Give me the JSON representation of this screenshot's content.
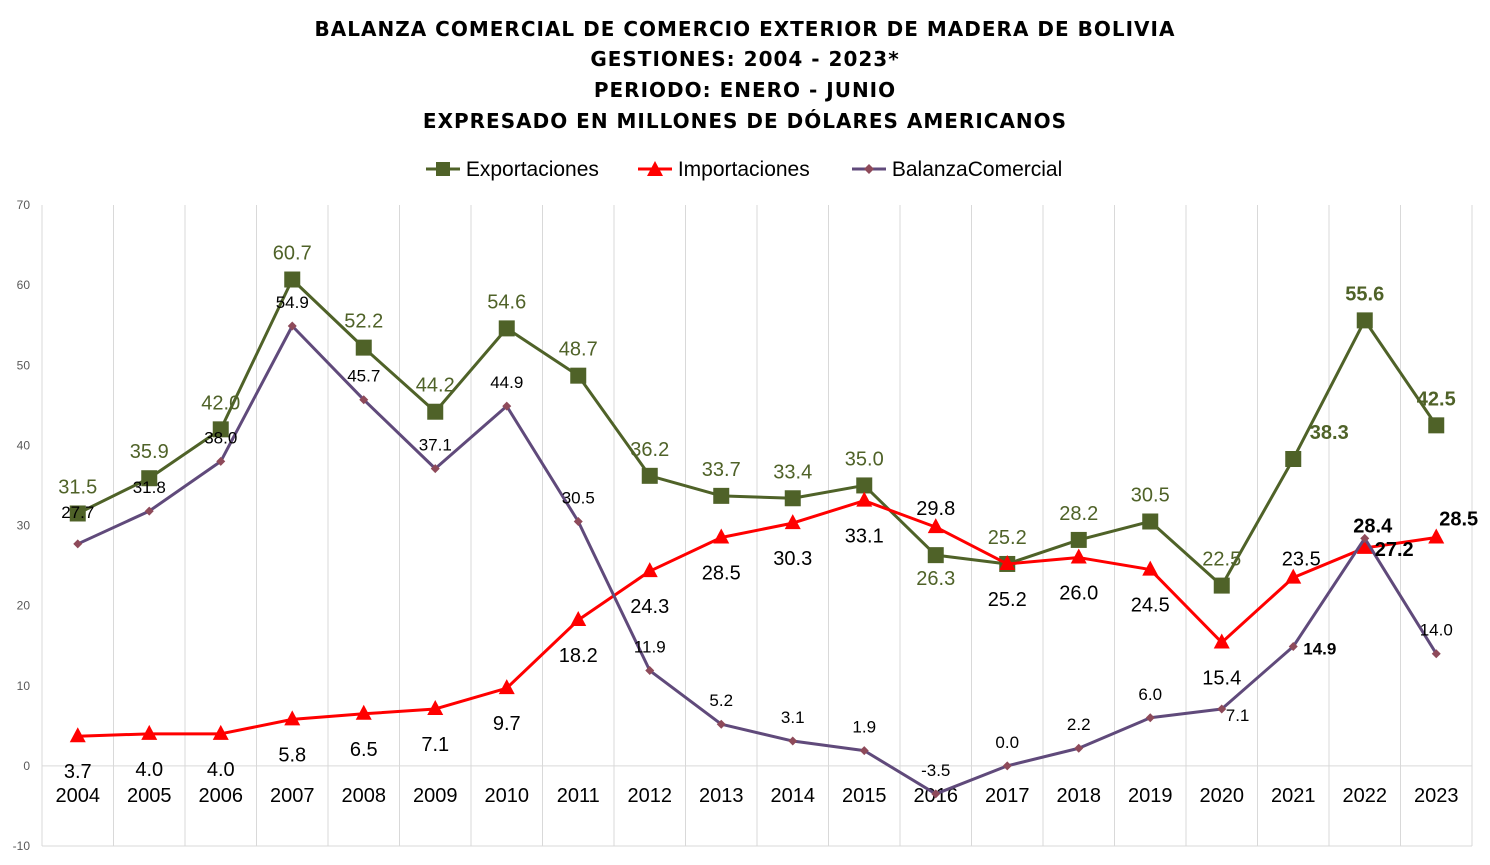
{
  "title_lines": [
    "BALANZA COMERCIAL DE COMERCIO EXTERIOR DE MADERA DE BOLIVIA",
    "GESTIONES: 2004 - 2023*",
    "PERIODO: ENERO - JUNIO",
    "EXPRESADO EN MILLONES DE DÓLARES AMERICANOS"
  ],
  "chart_data": {
    "type": "line",
    "title": "BALANZA COMERCIAL DE COMERCIO EXTERIOR DE MADERA DE BOLIVIA",
    "xlabel": "",
    "ylabel": "",
    "ylim": [
      -10,
      70
    ],
    "yticks": [
      -10,
      0,
      10,
      20,
      30,
      40,
      50,
      60,
      70
    ],
    "grid": "vertical",
    "legend": "top",
    "categories": [
      "2004",
      "2005",
      "2006",
      "2007",
      "2008",
      "2009",
      "2010",
      "2011",
      "2012",
      "2013",
      "2014",
      "2015",
      "2016",
      "2017",
      "2018",
      "2019",
      "2020",
      "2021",
      "2022",
      "2023"
    ],
    "series": [
      {
        "name": "Exportaciones",
        "color": "#4f6228",
        "marker": "square",
        "values": [
          31.5,
          35.9,
          42.0,
          60.7,
          52.2,
          44.2,
          54.6,
          48.7,
          36.2,
          33.7,
          33.4,
          35.0,
          26.3,
          25.2,
          28.2,
          30.5,
          22.5,
          38.3,
          55.6,
          42.5
        ]
      },
      {
        "name": "Importaciones",
        "color": "#ff0000",
        "marker": "triangle",
        "values": [
          3.7,
          4.0,
          4.0,
          5.8,
          6.5,
          7.1,
          9.7,
          18.2,
          24.3,
          28.5,
          30.3,
          33.1,
          29.8,
          25.2,
          26.0,
          24.5,
          15.4,
          23.5,
          27.2,
          28.5
        ]
      },
      {
        "name": "BalanzaComercial",
        "color": "#604a7b",
        "marker": "diamond",
        "values": [
          27.7,
          31.8,
          38.0,
          54.9,
          45.7,
          37.1,
          44.9,
          30.5,
          11.9,
          5.2,
          3.1,
          1.9,
          -3.5,
          0.0,
          2.2,
          6.0,
          7.1,
          14.9,
          28.4,
          14.0
        ]
      }
    ]
  }
}
